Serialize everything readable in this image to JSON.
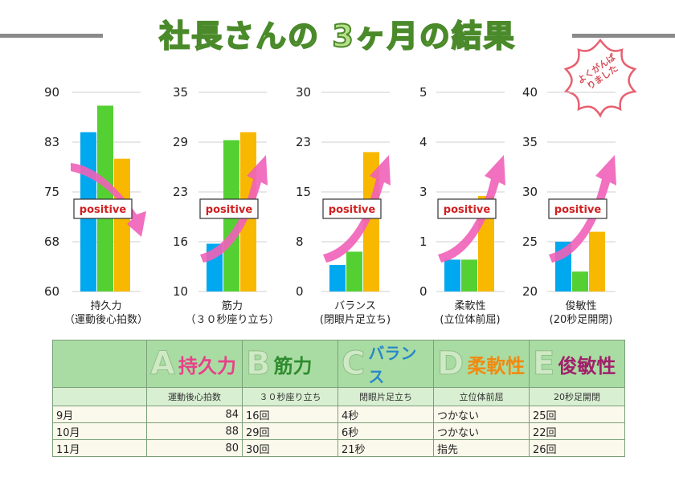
{
  "title": "社長さんの 3ヶ月の結果",
  "stamp_text": "よくがんばりました",
  "badge_label": "positive",
  "colors": {
    "sep": "#00a8f0",
    "oct": "#55d033",
    "nov": "#f8b800",
    "arrow": "#f060b8"
  },
  "chart_data": [
    {
      "type": "bar",
      "title": "持久力",
      "xlabel": "（運動後心拍数）",
      "ticks": [
        "90",
        "83",
        "75",
        "68",
        "60"
      ],
      "ylim": [
        60,
        90
      ],
      "values": [
        84,
        88,
        80
      ],
      "trend": "down"
    },
    {
      "type": "bar",
      "title": "筋力",
      "xlabel": "（３０秒座り立ち）",
      "ticks": [
        "35",
        "29",
        "23",
        "16",
        "10"
      ],
      "ylim": [
        10,
        35
      ],
      "values": [
        16,
        29,
        30
      ],
      "trend": "up"
    },
    {
      "type": "bar",
      "title": "バランス",
      "xlabel": "(閉眼片足立ち)",
      "ticks": [
        "30",
        "23",
        "15",
        "8",
        "0"
      ],
      "ylim": [
        0,
        30
      ],
      "values": [
        4,
        6,
        21
      ],
      "trend": "up"
    },
    {
      "type": "bar",
      "title": "柔軟性",
      "xlabel": "(立位体前屈)",
      "ticks": [
        "5",
        "4",
        "3",
        "1",
        "0"
      ],
      "ylim": [
        0,
        5
      ],
      "values": [
        0.8,
        0.8,
        2.4
      ],
      "trend": "up"
    },
    {
      "type": "bar",
      "title": "俊敏性",
      "xlabel": "(20秒足開閉)",
      "ticks": [
        "40",
        "35",
        "30",
        "25",
        "20"
      ],
      "ylim": [
        20,
        40
      ],
      "values": [
        25,
        22,
        26
      ],
      "trend": "up"
    }
  ],
  "table": {
    "headers": [
      {
        "letter": "A",
        "label": "持久力",
        "color": "#e8408a",
        "sub": "運動後心拍数"
      },
      {
        "letter": "B",
        "label": "筋力",
        "color": "#2e8b2e",
        "sub": "３０秒座り立ち"
      },
      {
        "letter": "C",
        "label": "バランス",
        "color": "#2a88c8",
        "sub": "閉眼片足立ち"
      },
      {
        "letter": "D",
        "label": "柔軟性",
        "color": "#f08a10",
        "sub": "立位体前屈"
      },
      {
        "letter": "E",
        "label": "俊敏性",
        "color": "#a0206a",
        "sub": "20秒足開閉"
      }
    ],
    "rows": [
      {
        "month": "9月",
        "cells": [
          "84",
          "16回",
          "4秒",
          "つかない",
          "25回"
        ]
      },
      {
        "month": "10月",
        "cells": [
          "88",
          "29回",
          "6秒",
          "つかない",
          "22回"
        ]
      },
      {
        "month": "11月",
        "cells": [
          "80",
          "30回",
          "21秒",
          "指先",
          "26回"
        ]
      }
    ]
  }
}
